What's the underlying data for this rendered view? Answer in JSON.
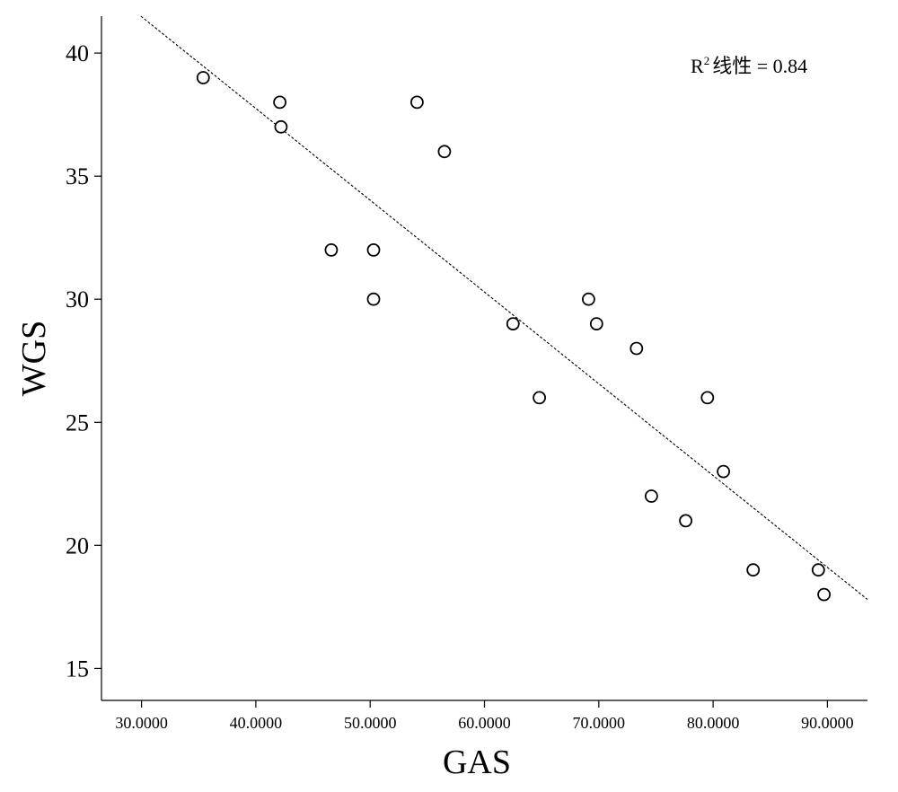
{
  "chart_data": {
    "type": "scatter",
    "title": "",
    "xlabel": "GAS",
    "ylabel": "WGS",
    "xlim": [
      26.5,
      93.5
    ],
    "ylim": [
      13.7,
      41.5
    ],
    "x_ticks": [
      30,
      40,
      50,
      60,
      70,
      80,
      90
    ],
    "x_tick_labels": [
      "30.0000",
      "40.0000",
      "50.0000",
      "60.0000",
      "70.0000",
      "80.0000",
      "90.0000"
    ],
    "y_ticks": [
      15,
      20,
      25,
      30,
      35,
      40
    ],
    "y_tick_labels": [
      "15",
      "20",
      "25",
      "30",
      "35",
      "40"
    ],
    "points": [
      {
        "x": 35.4,
        "y": 39
      },
      {
        "x": 42.1,
        "y": 38
      },
      {
        "x": 42.2,
        "y": 37
      },
      {
        "x": 46.6,
        "y": 32
      },
      {
        "x": 50.3,
        "y": 32
      },
      {
        "x": 50.3,
        "y": 30
      },
      {
        "x": 54.1,
        "y": 38
      },
      {
        "x": 56.5,
        "y": 36
      },
      {
        "x": 62.5,
        "y": 29
      },
      {
        "x": 64.8,
        "y": 26
      },
      {
        "x": 69.1,
        "y": 30
      },
      {
        "x": 69.8,
        "y": 29
      },
      {
        "x": 73.3,
        "y": 28
      },
      {
        "x": 74.6,
        "y": 22
      },
      {
        "x": 77.6,
        "y": 21
      },
      {
        "x": 79.5,
        "y": 26
      },
      {
        "x": 80.9,
        "y": 23
      },
      {
        "x": 83.5,
        "y": 19
      },
      {
        "x": 89.2,
        "y": 19
      },
      {
        "x": 89.7,
        "y": 18
      }
    ],
    "fit_line": {
      "x": [
        29.95,
        93.5
      ],
      "y": [
        41.5,
        17.8
      ]
    },
    "annotation": {
      "base": "R",
      "superscript": "2",
      "text": "线性 = 0.84"
    },
    "grid": false,
    "colors": {
      "marker_stroke": "#000000",
      "marker_fill": "#ffffff",
      "fit_line": "#000000",
      "axis": "#000000"
    }
  }
}
